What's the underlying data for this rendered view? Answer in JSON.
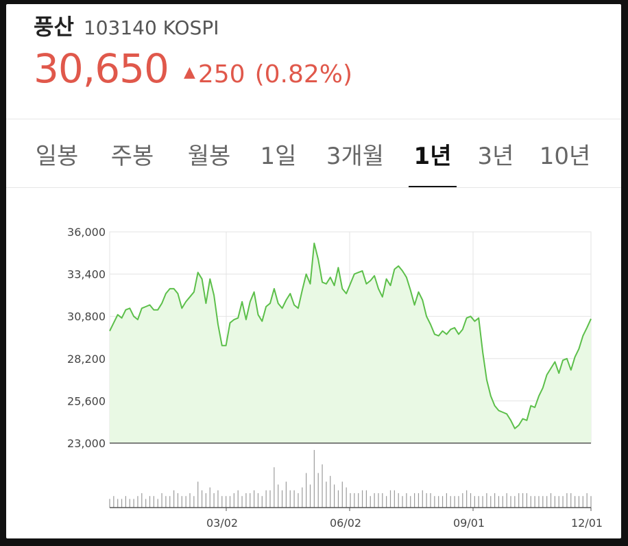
{
  "stock": {
    "name": "풍산",
    "code": "103140 KOSPI",
    "price": "30,650",
    "change_arrow": "▲",
    "change": "250",
    "change_pct": "(0.82%)"
  },
  "tabs": [
    {
      "label": "일봉",
      "active": false
    },
    {
      "label": "주봉",
      "active": false
    },
    {
      "label": "월봉",
      "active": false
    },
    {
      "label": "1일",
      "active": false
    },
    {
      "label": "3개월",
      "active": false
    },
    {
      "label": "1년",
      "active": true
    },
    {
      "label": "3년",
      "active": false
    },
    {
      "label": "10년",
      "active": false
    }
  ],
  "colors": {
    "price_up": "#e0584b",
    "line": "#5cbf4a",
    "area": "#e9f9e4",
    "grid": "#e3e3e3",
    "volume": "#9a9a9a"
  },
  "chart_data": {
    "type": "line",
    "yticks": [
      "36,000",
      "33,400",
      "30,800",
      "28,200",
      "25,600",
      "23,000"
    ],
    "ylim": [
      23000,
      36000
    ],
    "xticks": [
      "03/02",
      "06/02",
      "09/01",
      "12/01"
    ],
    "grid": true,
    "x": [
      0,
      3,
      6,
      9,
      12,
      15,
      18,
      21,
      24,
      27,
      30,
      33,
      36,
      39,
      42,
      45,
      48,
      51,
      54,
      57,
      60,
      63,
      66,
      69,
      72,
      75,
      78,
      81,
      84,
      87,
      90,
      93,
      96,
      99,
      102,
      105,
      108,
      111,
      114,
      117,
      120,
      123,
      126,
      129,
      132,
      135,
      138,
      141,
      144,
      147,
      150,
      153,
      156,
      159,
      162,
      165,
      168,
      171,
      174,
      177,
      180,
      183,
      186,
      189,
      192,
      195,
      198,
      201,
      204,
      207,
      210,
      213,
      216,
      219,
      222,
      225,
      228,
      231,
      234,
      237,
      240,
      243,
      246,
      249,
      252,
      255,
      258,
      261,
      264,
      267,
      270,
      273,
      276,
      279,
      282,
      285,
      288,
      291,
      294,
      297,
      300,
      303,
      306,
      309,
      312,
      315,
      318,
      321,
      324,
      327,
      330,
      333,
      336,
      339,
      342,
      345,
      348,
      351,
      354,
      357,
      360
    ],
    "values": [
      29900,
      30400,
      30900,
      30700,
      31200,
      31300,
      30800,
      30600,
      31300,
      31400,
      31500,
      31200,
      31200,
      31600,
      32200,
      32500,
      32500,
      32200,
      31300,
      31700,
      32000,
      32300,
      33500,
      33100,
      31600,
      33100,
      32100,
      30300,
      29000,
      29000,
      30400,
      30600,
      30700,
      31700,
      30600,
      31700,
      32300,
      30900,
      30500,
      31400,
      31600,
      32500,
      31600,
      31300,
      31800,
      32200,
      31500,
      31300,
      32400,
      33400,
      32800,
      35300,
      34300,
      32900,
      32800,
      33200,
      32700,
      33800,
      32500,
      32200,
      32800,
      33400,
      33500,
      33600,
      32800,
      33000,
      33300,
      32500,
      32000,
      33100,
      32700,
      33700,
      33900,
      33600,
      33200,
      32400,
      31500,
      32300,
      31800,
      30800,
      30300,
      29700,
      29600,
      29900,
      29700,
      30000,
      30100,
      29700,
      30000,
      30700,
      30800,
      30500,
      30700,
      28600,
      26900,
      25900,
      25300,
      25000,
      24900,
      24800,
      24400,
      23900,
      24100,
      24500,
      24400,
      25300,
      25200,
      25900,
      26400,
      27200,
      27600,
      28000,
      27300,
      28100,
      28200,
      27500,
      28300,
      28800,
      29600,
      30100,
      30650
    ]
  },
  "volume_data": {
    "values": [
      3,
      4,
      3,
      3,
      4,
      3,
      3,
      4,
      5,
      3,
      4,
      4,
      3,
      5,
      4,
      4,
      6,
      5,
      4,
      4,
      5,
      4,
      9,
      6,
      5,
      7,
      5,
      6,
      4,
      4,
      4,
      5,
      6,
      4,
      5,
      5,
      6,
      5,
      4,
      6,
      6,
      14,
      8,
      6,
      9,
      6,
      6,
      5,
      7,
      12,
      8,
      20,
      12,
      15,
      9,
      11,
      8,
      6,
      9,
      7,
      5,
      5,
      5,
      6,
      6,
      4,
      5,
      5,
      5,
      4,
      6,
      6,
      5,
      4,
      5,
      4,
      5,
      5,
      6,
      5,
      5,
      4,
      4,
      4,
      5,
      4,
      4,
      4,
      5,
      6,
      5,
      4,
      4,
      4,
      5,
      4,
      5,
      4,
      4,
      5,
      4,
      4,
      5,
      5,
      5,
      4,
      4,
      4,
      4,
      4,
      5,
      4,
      4,
      4,
      5,
      5,
      4,
      4,
      4,
      5,
      4
    ]
  }
}
